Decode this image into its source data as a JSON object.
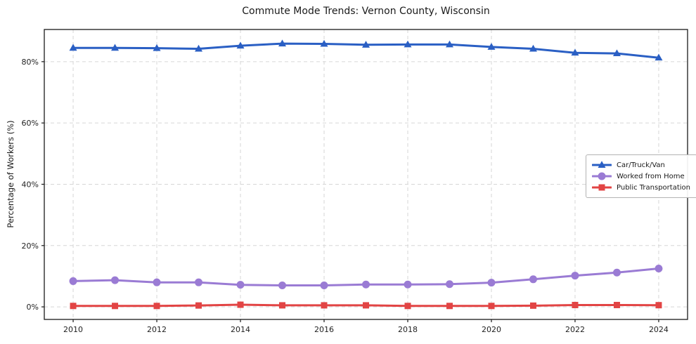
{
  "figure": {
    "title": "Commute Mode Trends: Vernon County, Wisconsin",
    "ylabel": "Percentage of Workers (%)"
  },
  "chart_data": {
    "type": "line",
    "title": "Commute Mode Trends: Vernon County, Wisconsin",
    "xlabel": "",
    "ylabel": "Percentage of Workers (%)",
    "x": [
      2010,
      2011,
      2012,
      2013,
      2014,
      2015,
      2016,
      2017,
      2018,
      2019,
      2020,
      2021,
      2022,
      2023,
      2024
    ],
    "series": [
      {
        "name": "Car/Truck/Van",
        "color": "#2a5fc4",
        "marker": "triangle",
        "values": [
          84.5,
          84.5,
          84.4,
          84.2,
          85.2,
          85.9,
          85.8,
          85.5,
          85.6,
          85.6,
          84.8,
          84.2,
          82.9,
          82.7,
          81.3
        ]
      },
      {
        "name": "Worked from Home",
        "color": "#9a7bd4",
        "marker": "circle",
        "values": [
          8.4,
          8.7,
          8.0,
          8.0,
          7.2,
          7.0,
          7.0,
          7.3,
          7.3,
          7.4,
          7.9,
          9.0,
          10.2,
          11.2,
          12.5
        ]
      },
      {
        "name": "Public Transportation",
        "color": "#e24444",
        "marker": "square",
        "values": [
          0.3,
          0.3,
          0.3,
          0.45,
          0.7,
          0.5,
          0.5,
          0.5,
          0.3,
          0.3,
          0.3,
          0.4,
          0.6,
          0.6,
          0.55
        ]
      }
    ],
    "xticks": [
      2010,
      2012,
      2014,
      2016,
      2018,
      2020,
      2022,
      2024
    ],
    "xtick_labels": [
      "2010",
      "2012",
      "2014",
      "2016",
      "2018",
      "2020",
      "2022",
      "2024"
    ],
    "yticks": [
      0,
      20,
      40,
      60,
      80
    ],
    "ytick_labels": [
      "0%",
      "20%",
      "40%",
      "60%",
      "80%"
    ],
    "xlim": [
      2009.31,
      2024.69
    ],
    "ylim": [
      -4.1,
      90.5
    ],
    "grid": true,
    "grid_style": "dashed",
    "legend_position": "center-right"
  },
  "colors": {
    "grid": "#d6d6d6",
    "spine": "#1a1a1a",
    "text": "#1f1f1f",
    "background": "#ffffff"
  }
}
